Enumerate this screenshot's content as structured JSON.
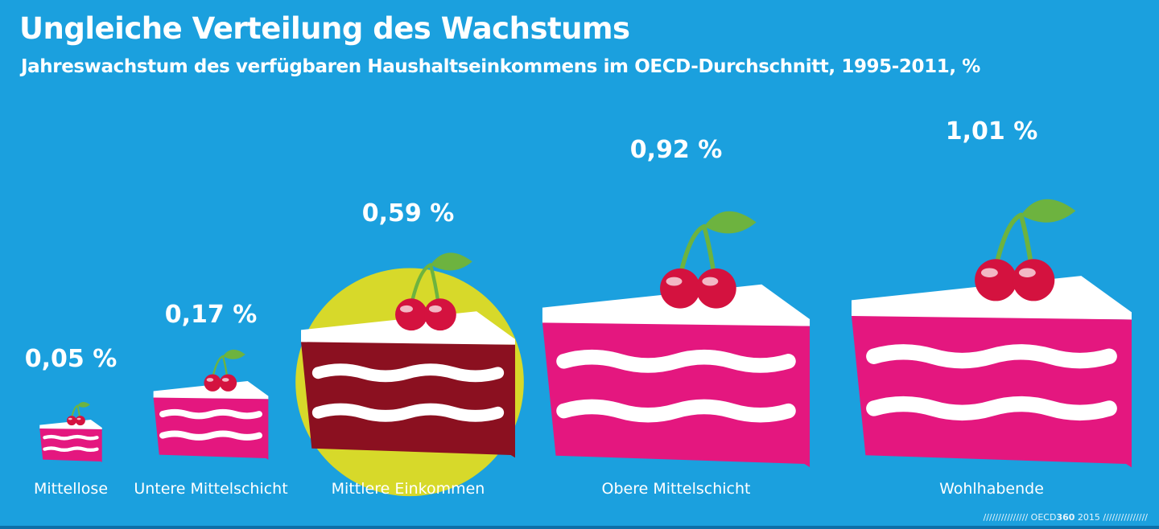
{
  "title": "Ungleiche Verteilung des Wachstums",
  "subtitle": "Jahreswachstum des verfügbaren Haushaltseinkommens im OECD-Durchschnitt, 1995-2011, %",
  "footer": {
    "slashes_left": "///////////////",
    "brand": "OECD",
    "brand_bold": "360",
    "year": "2015",
    "slashes_right": "///////////////"
  },
  "colors": {
    "background": "#1ba0de",
    "cake": "#e4177f",
    "cake_highlight": "#8b1020",
    "cream": "#ffffff",
    "cherry": "#d4123f",
    "stem": "#6db33f",
    "highlight_circle": "#d7d92a"
  },
  "chart_data": {
    "type": "bar",
    "title": "Ungleiche Verteilung des Wachstums",
    "subtitle": "Jahreswachstum des verfügbaren Haushaltseinkommens im OECD-Durchschnitt, 1995-2011, %",
    "unit": "%",
    "categories": [
      "Mittellose",
      "Untere Mittelschicht",
      "Mittlere Einkommen",
      "Obere Mittelschicht",
      "Wohlhabende"
    ],
    "values": [
      0.05,
      0.17,
      0.59,
      0.92,
      1.01
    ],
    "value_labels": [
      "0,05 %",
      "0,17 %",
      "0,59 %",
      "0,92 %",
      "1,01 %"
    ],
    "highlighted": "Mittlere Einkommen",
    "marks": "cake slices scaled by value"
  }
}
